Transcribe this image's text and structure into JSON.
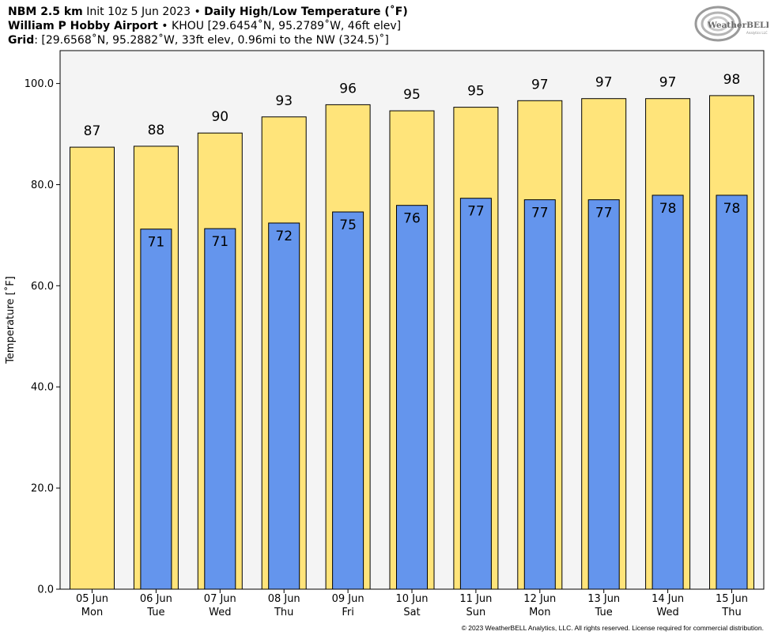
{
  "header": {
    "line1_bold": "NBM 2.5 km",
    "line1_init": "Init 10z 5 Jun 2023",
    "line1_sep": "•",
    "line1_product": "Daily High/Low Temperature (˚F)",
    "line2_bold": "William P Hobby Airport",
    "line2_sep": "•",
    "line2_rest": "KHOU [29.6454˚N, 95.2789˚W, 46ft elev]",
    "line3_bold": "Grid",
    "line3_rest": ": [29.6568˚N, 95.2882˚W, 33ft elev, 0.96mi to the NW (324.5)˚]"
  },
  "logo": {
    "text": "WeatherBELL",
    "subtext": "Analytics LLC"
  },
  "colors": {
    "high": "#FFE47A",
    "low": "#6495ED",
    "plot_bg": "#F4F4F4",
    "border": "#000000"
  },
  "chart_data": {
    "type": "bar",
    "ylabel": "Temperature [˚F]",
    "ylim": [
      0,
      106.5
    ],
    "yticks": [
      0,
      20,
      40,
      60,
      80,
      100
    ],
    "ytick_labels": [
      "0.0",
      "20.0",
      "40.0",
      "60.0",
      "80.0",
      "100.0"
    ],
    "categories": [
      "05 Jun",
      "06 Jun",
      "07 Jun",
      "08 Jun",
      "09 Jun",
      "10 Jun",
      "11 Jun",
      "12 Jun",
      "13 Jun",
      "14 Jun",
      "15 Jun"
    ],
    "category_days": [
      "Mon",
      "Tue",
      "Wed",
      "Thu",
      "Fri",
      "Sat",
      "Sun",
      "Mon",
      "Tue",
      "Wed",
      "Thu"
    ],
    "series": [
      {
        "key": "high",
        "values": [
          87.4,
          87.6,
          90.2,
          93.4,
          95.8,
          94.6,
          95.3,
          96.6,
          97.0,
          97.0,
          97.6
        ],
        "labels": [
          "87",
          "88",
          "90",
          "93",
          "96",
          "95",
          "95",
          "97",
          "97",
          "97",
          "98"
        ]
      },
      {
        "key": "low",
        "values": [
          null,
          71.2,
          71.3,
          72.4,
          74.6,
          75.9,
          77.3,
          77.0,
          77.0,
          77.9,
          77.9
        ],
        "labels": [
          "",
          "71",
          "71",
          "72",
          "75",
          "76",
          "77",
          "77",
          "77",
          "78",
          "78"
        ]
      }
    ],
    "grid": false,
    "legend": "none"
  },
  "footer": {
    "copyright": "© 2023 WeatherBELL Analytics, LLC. All rights reserved. License required for commercial distribution."
  }
}
